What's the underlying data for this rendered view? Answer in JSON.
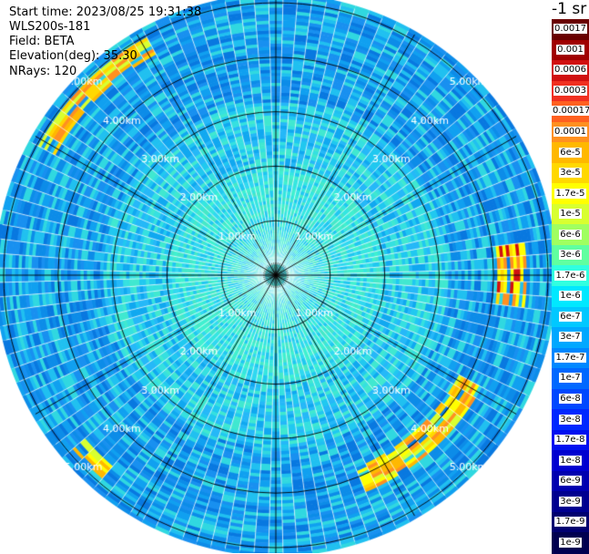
{
  "header": {
    "start_time": "Start time: 2023/08/25 19:31:38",
    "instrument": "WLS200s-181",
    "field": "Field: BETA",
    "elevation": "Elevation(deg): 35.30",
    "nrays": "NRays: 120"
  },
  "colorbar": {
    "unit_label": "-1 sr",
    "labels": [
      "0.0017",
      "0.001",
      "0.0006",
      "0.0003",
      "0.00017",
      "0.0001",
      "6e-5",
      "3e-5",
      "1.7e-5",
      "1e-5",
      "6e-6",
      "3e-6",
      "1.7e-6",
      "1e-6",
      "6e-7",
      "3e-7",
      "1.7e-7",
      "1e-7",
      "6e-8",
      "3e-8",
      "1.7e-8",
      "1e-8",
      "6e-9",
      "3e-9",
      "1.7e-9",
      "1e-9"
    ],
    "colors": [
      "#6a0000",
      "#a00000",
      "#d01010",
      "#f03020",
      "#ff6020",
      "#ff9020",
      "#ffb800",
      "#ffd800",
      "#ffff00",
      "#d8ff30",
      "#a0ff60",
      "#60ffa0",
      "#30ffe0",
      "#00e8ff",
      "#00c8ff",
      "#00a8ff",
      "#0088ff",
      "#0068ff",
      "#0048ff",
      "#0028ff",
      "#0010f0",
      "#0000d0",
      "#0000b0",
      "#000090",
      "#000070",
      "#000050"
    ]
  },
  "chart_data": {
    "type": "heatmap",
    "projection": "polar PPI",
    "field": "BETA",
    "elevation_deg": 35.3,
    "n_rays": 120,
    "range_ring_labels_km": [
      "1.00km",
      "2.00km",
      "3.00km",
      "4.00km",
      "5.00km"
    ],
    "range_rings_km": [
      1,
      2,
      3,
      4,
      5
    ],
    "spokes_every_deg": 30,
    "max_range_km": 5.1,
    "gate_spacing_km": 0.06,
    "background_levels": [
      {
        "r_max_km": 2.0,
        "palette": [
          "#35e6e0",
          "#40f0d0",
          "#30d8f0",
          "#45e8c8",
          "#20c8f0"
        ]
      },
      {
        "r_max_km": 3.2,
        "palette": [
          "#20c8f0",
          "#35e0e0",
          "#10a8f0",
          "#25b8f8",
          "#40e8d0"
        ]
      },
      {
        "r_max_km": 5.2,
        "palette": [
          "#10a0f0",
          "#0c8ce8",
          "#1890f0",
          "#20c0f0",
          "#0878e0",
          "#30d8e0"
        ]
      }
    ],
    "features": [
      {
        "name": "east band",
        "az_deg": [
          83,
          98
        ],
        "r_km": [
          4.1,
          4.6
        ],
        "colors": [
          "#ffd800",
          "#ff9020",
          "#d01010",
          "#ffff00"
        ]
      },
      {
        "name": "southeast band",
        "az_deg": [
          118,
          158
        ],
        "r_km": [
          3.85,
          4.3
        ],
        "colors": [
          "#ffff00",
          "#d8ff30",
          "#ffd800",
          "#ff9020",
          "#ffb800"
        ]
      },
      {
        "name": "northwest band",
        "az_deg": [
          300,
          330
        ],
        "r_km": [
          4.6,
          4.95
        ],
        "colors": [
          "#ffb800",
          "#ff9020",
          "#ffd800",
          "#d8ff30"
        ]
      },
      {
        "name": "southwest patch",
        "az_deg": [
          222,
          230
        ],
        "r_km": [
          4.6,
          4.9
        ],
        "colors": [
          "#ffff00",
          "#ffb800",
          "#d8ff30"
        ]
      }
    ]
  }
}
